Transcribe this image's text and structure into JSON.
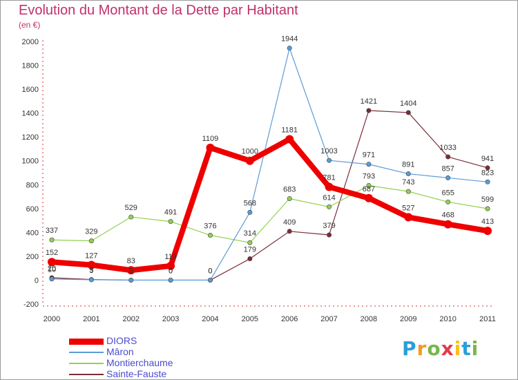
{
  "chart_data": {
    "type": "line",
    "title": "Evolution du Montant de la Dette par Habitant",
    "subtitle": "(en €)",
    "x": [
      "2000",
      "2001",
      "2002",
      "2003",
      "2004",
      "2005",
      "2006",
      "2007",
      "2008",
      "2009",
      "2010",
      "2011"
    ],
    "ylim": [
      -200,
      2000
    ],
    "yticks": [
      "-200",
      "0",
      "200",
      "400",
      "600",
      "800",
      "1000",
      "1200",
      "1400",
      "1600",
      "1800",
      "2000"
    ],
    "grid": false,
    "legend_position": "bottom-left",
    "series": [
      {
        "name": "DIORS",
        "color": "#ee0000",
        "values": [
          152,
          127,
          83,
          119,
          1109,
          1000,
          1181,
          781,
          687,
          527,
          468,
          413
        ],
        "labels": [
          "152",
          "127",
          "83",
          "119",
          "1109",
          "1000",
          "1181",
          "781",
          "687",
          "527",
          "468",
          "413"
        ]
      },
      {
        "name": "Mâron",
        "color": "#5b9bd5",
        "values": [
          10,
          3,
          0,
          0,
          0,
          568,
          1944,
          1003,
          971,
          891,
          857,
          823
        ],
        "labels": [
          "10",
          "3",
          "0",
          "0",
          "0",
          "568",
          "1944",
          "1003",
          "971",
          "891",
          "857",
          "823"
        ]
      },
      {
        "name": "Montierchaume",
        "color": "#92d050",
        "values": [
          337,
          329,
          529,
          491,
          376,
          314,
          683,
          614,
          793,
          743,
          655,
          599
        ],
        "labels": [
          "337",
          "329",
          "529",
          "491",
          "376",
          "314",
          "683",
          "614",
          "793",
          "743",
          "655",
          "599"
        ]
      },
      {
        "name": "Sainte-Fauste",
        "color": "#7b2c36",
        "values": [
          20,
          5,
          0,
          0,
          0,
          179,
          409,
          379,
          1421,
          1404,
          1033,
          941
        ],
        "labels": [
          "20",
          "5",
          "0",
          "0",
          "0",
          "179",
          "409",
          "379",
          "1421",
          "1404",
          "1033",
          "941"
        ]
      }
    ]
  },
  "logo": {
    "letters": [
      "P",
      "r",
      "o",
      "x",
      "i",
      "t",
      "i"
    ],
    "colors": [
      "#2a9fd8",
      "#f29a1f",
      "#7ab648",
      "#e5394b",
      "#f7c21a",
      "#2a9fd8",
      "#7ab648"
    ]
  }
}
